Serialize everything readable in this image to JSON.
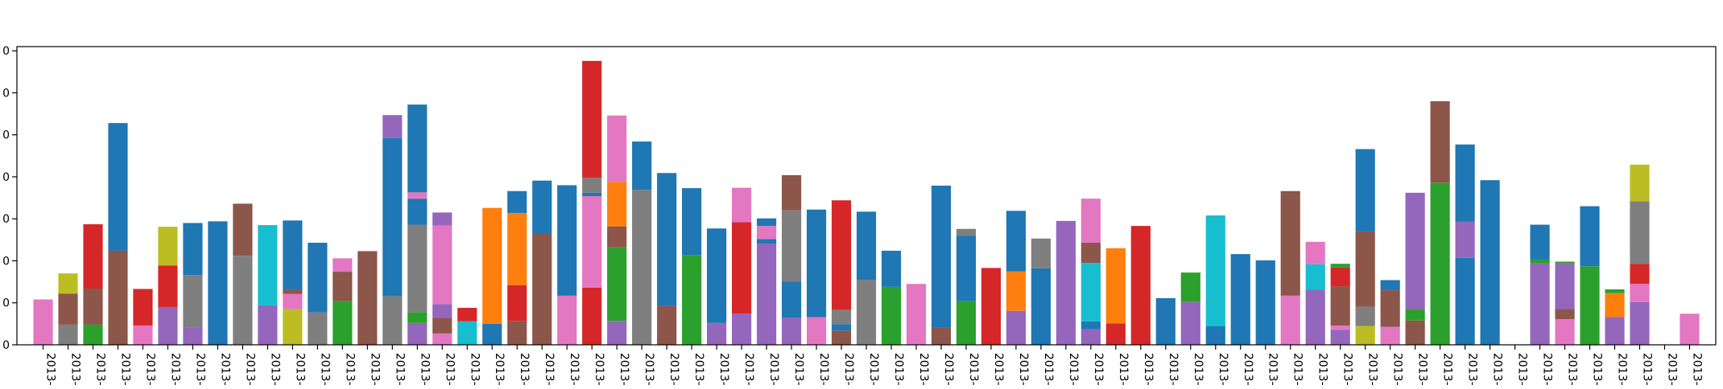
{
  "chart_data": {
    "type": "bar",
    "stacked": true,
    "title": "",
    "xlabel": "",
    "ylabel": "",
    "ylim": [
      0,
      71
    ],
    "y_ticks": [
      0,
      10,
      20,
      30,
      40,
      50,
      60,
      70
    ],
    "y_tick_labels": [
      "0",
      "0",
      "0",
      "0",
      "0",
      "0",
      "0",
      "0"
    ],
    "tick_label": "2013-",
    "grid": false,
    "legend": "none",
    "palette": {
      "blue": "#1f77b4",
      "orange": "#ff7f0e",
      "green": "#2ca02c",
      "red": "#d62728",
      "purple": "#9467bd",
      "brown": "#8c564b",
      "pink": "#e377c2",
      "gray": "#7f7f7f",
      "olive": "#bcbd22",
      "cyan": "#17becf"
    },
    "bars": [
      [
        [
          "pink",
          10.8
        ]
      ],
      [
        [
          "gray",
          4.8
        ],
        [
          "brown",
          7.4
        ],
        [
          "olive",
          4.8
        ]
      ],
      [
        [
          "green",
          4.8
        ],
        [
          "brown",
          8.6
        ],
        [
          "red",
          15.3
        ]
      ],
      [
        [
          "brown",
          22.4
        ],
        [
          "blue",
          30.4
        ]
      ],
      [
        [
          "pink",
          4.6
        ],
        [
          "red",
          8.7
        ]
      ],
      [
        [
          "purple",
          9.0
        ],
        [
          "red",
          9.9
        ],
        [
          "olive",
          9.2
        ]
      ],
      [
        [
          "purple",
          4.1
        ],
        [
          "gray",
          12.5
        ],
        [
          "blue",
          12.4
        ]
      ],
      [
        [
          "blue",
          29.4
        ]
      ],
      [
        [
          "gray",
          21.2
        ],
        [
          "brown",
          12.4
        ]
      ],
      [
        [
          "purple",
          9.4
        ],
        [
          "cyan",
          19.1
        ]
      ],
      [
        [
          "olive",
          8.5
        ],
        [
          "pink",
          3.6
        ],
        [
          "brown",
          1.1
        ],
        [
          "blue",
          16.4
        ]
      ],
      [
        [
          "gray",
          7.7
        ],
        [
          "blue",
          16.6
        ]
      ],
      [
        [
          "green",
          10.4
        ],
        [
          "brown",
          7.0
        ],
        [
          "pink",
          3.2
        ]
      ],
      [
        [
          "brown",
          22.3
        ]
      ],
      [
        [
          "gray",
          11.6
        ],
        [
          "blue",
          37.6
        ],
        [
          "purple",
          5.5
        ]
      ],
      [
        [
          "purple",
          5.2
        ],
        [
          "green",
          2.6
        ],
        [
          "gray",
          20.8
        ],
        [
          "blue",
          6.2
        ],
        [
          "pink",
          1.5
        ],
        [
          "blue",
          20.9
        ]
      ],
      [
        [
          "pink",
          2.7
        ],
        [
          "brown",
          3.7
        ],
        [
          "purple",
          3.3
        ],
        [
          "pink",
          18.7
        ],
        [
          "purple",
          3.1
        ]
      ],
      [
        [
          "cyan",
          5.6
        ],
        [
          "red",
          3.2
        ]
      ],
      [
        [
          "blue",
          5.0
        ],
        [
          "orange",
          27.6
        ]
      ],
      [
        [
          "brown",
          5.7
        ],
        [
          "red",
          8.5
        ],
        [
          "orange",
          17.2
        ],
        [
          "blue",
          5.2
        ]
      ],
      [
        [
          "brown",
          26.6
        ],
        [
          "blue",
          12.5
        ]
      ],
      [
        [
          "pink",
          11.7
        ],
        [
          "blue",
          26.3
        ]
      ],
      [
        [
          "red",
          13.6
        ],
        [
          "pink",
          21.8
        ],
        [
          "blue",
          0.8
        ],
        [
          "gray",
          3.6
        ],
        [
          "red",
          27.8
        ]
      ],
      [
        [
          "purple",
          5.7
        ],
        [
          "green",
          17.5
        ],
        [
          "brown",
          5.0
        ],
        [
          "orange",
          10.6
        ],
        [
          "pink",
          15.8
        ]
      ],
      [
        [
          "gray",
          36.9
        ],
        [
          "blue",
          11.5
        ]
      ],
      [
        [
          "brown",
          9.3
        ],
        [
          "blue",
          31.6
        ]
      ],
      [
        [
          "green",
          21.4
        ],
        [
          "blue",
          15.9
        ]
      ],
      [
        [
          "purple",
          5.2
        ],
        [
          "blue",
          22.5
        ]
      ],
      [
        [
          "purple",
          7.4
        ],
        [
          "red",
          21.8
        ],
        [
          "pink",
          8.2
        ]
      ],
      [
        [
          "purple",
          24.1
        ],
        [
          "blue",
          1.1
        ],
        [
          "pink",
          3.1
        ],
        [
          "blue",
          1.8
        ]
      ],
      [
        [
          "purple",
          6.5
        ],
        [
          "blue",
          8.6
        ],
        [
          "gray",
          16.9
        ],
        [
          "brown",
          8.4
        ]
      ],
      [
        [
          "pink",
          6.6
        ],
        [
          "blue",
          25.6
        ]
      ],
      [
        [
          "brown",
          3.4
        ],
        [
          "blue",
          1.5
        ],
        [
          "gray",
          3.4
        ],
        [
          "red",
          26.1
        ]
      ],
      [
        [
          "gray",
          15.5
        ],
        [
          "blue",
          16.2
        ]
      ],
      [
        [
          "green",
          13.8
        ],
        [
          "blue",
          8.6
        ]
      ],
      [
        [
          "pink",
          14.5
        ]
      ],
      [
        [
          "brown",
          4.1
        ],
        [
          "blue",
          33.8
        ]
      ],
      [
        [
          "green",
          10.4
        ],
        [
          "blue",
          15.6
        ],
        [
          "gray",
          1.6
        ]
      ],
      [
        [
          "red",
          18.3
        ]
      ],
      [
        [
          "purple",
          8.1
        ],
        [
          "orange",
          9.4
        ],
        [
          "blue",
          14.4
        ]
      ],
      [
        [
          "blue",
          18.2
        ],
        [
          "gray",
          7.1
        ]
      ],
      [
        [
          "purple",
          29.5
        ]
      ],
      [
        [
          "purple",
          3.7
        ],
        [
          "blue",
          1.9
        ],
        [
          "cyan",
          13.9
        ],
        [
          "brown",
          4.8
        ],
        [
          "pink",
          10.5
        ]
      ],
      [
        [
          "red",
          5.1
        ],
        [
          "orange",
          17.9
        ]
      ],
      [
        [
          "red",
          28.3
        ]
      ],
      [
        [
          "blue",
          11.1
        ]
      ],
      [
        [
          "purple",
          10.2
        ],
        [
          "green",
          7.0
        ]
      ],
      [
        [
          "blue",
          4.4
        ],
        [
          "cyan",
          26.4
        ]
      ],
      [
        [
          "blue",
          21.6
        ]
      ],
      [
        [
          "blue",
          20.1
        ]
      ],
      [
        [
          "pink",
          11.7
        ],
        [
          "brown",
          24.9
        ]
      ],
      [
        [
          "purple",
          13.1
        ],
        [
          "cyan",
          6.1
        ],
        [
          "pink",
          5.3
        ]
      ],
      [
        [
          "purple",
          3.6
        ],
        [
          "pink",
          1.0
        ],
        [
          "brown",
          9.3
        ],
        [
          "red",
          4.5
        ],
        [
          "green",
          0.9
        ]
      ],
      [
        [
          "olive",
          4.5
        ],
        [
          "gray",
          4.6
        ],
        [
          "brown",
          17.9
        ],
        [
          "blue",
          19.6
        ]
      ],
      [
        [
          "pink",
          4.3
        ],
        [
          "brown",
          8.7
        ],
        [
          "blue",
          2.4
        ]
      ],
      [
        [
          "brown",
          5.8
        ],
        [
          "green",
          2.7
        ],
        [
          "purple",
          27.7
        ]
      ],
      [
        [
          "green",
          38.6
        ],
        [
          "brown",
          19.4
        ]
      ],
      [
        [
          "blue",
          20.7
        ],
        [
          "purple",
          8.6
        ],
        [
          "blue",
          18.4
        ]
      ],
      [
        [
          "blue",
          39.2
        ]
      ],
      [],
      [
        [
          "purple",
          19.4
        ],
        [
          "green",
          0.9
        ],
        [
          "blue",
          8.3
        ]
      ],
      [
        [
          "pink",
          6.1
        ],
        [
          "brown",
          2.4
        ],
        [
          "purple",
          10.9
        ],
        [
          "green",
          0.4
        ]
      ],
      [
        [
          "green",
          18.7
        ],
        [
          "blue",
          14.3
        ]
      ],
      [
        [
          "purple",
          6.6
        ],
        [
          "orange",
          5.7
        ],
        [
          "green",
          0.9
        ]
      ],
      [
        [
          "purple",
          10.2
        ],
        [
          "pink",
          4.3
        ],
        [
          "red",
          4.8
        ],
        [
          "gray",
          14.9
        ],
        [
          "olive",
          8.7
        ]
      ],
      [],
      [
        [
          "pink",
          7.4
        ]
      ]
    ]
  }
}
